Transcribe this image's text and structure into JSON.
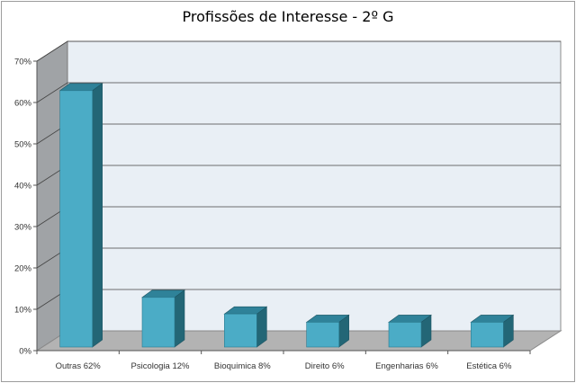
{
  "chart_data": {
    "type": "bar",
    "title": "Profissões de Interesse - 2º G",
    "categories": [
      "Outras 62%",
      "Psicologia 12%",
      "Bioquimica 8%",
      "Direito 6%",
      "Engenharias 6%",
      "Estética 6%"
    ],
    "values": [
      62,
      12,
      8,
      6,
      6,
      6
    ],
    "ytick_labels": [
      "0%",
      "10%",
      "20%",
      "30%",
      "40%",
      "50%",
      "60%",
      "70%"
    ],
    "ylim": [
      0,
      70
    ],
    "grid": true,
    "legend": "none",
    "colors": {
      "bar_front": "#4bacc6",
      "bar_top": "#2f8299",
      "bar_side": "#236676",
      "back_wall": "#e9eff5",
      "side_wall": "#a0a3a6",
      "floor": "#b3b3b3",
      "gridline": "#444444"
    }
  }
}
